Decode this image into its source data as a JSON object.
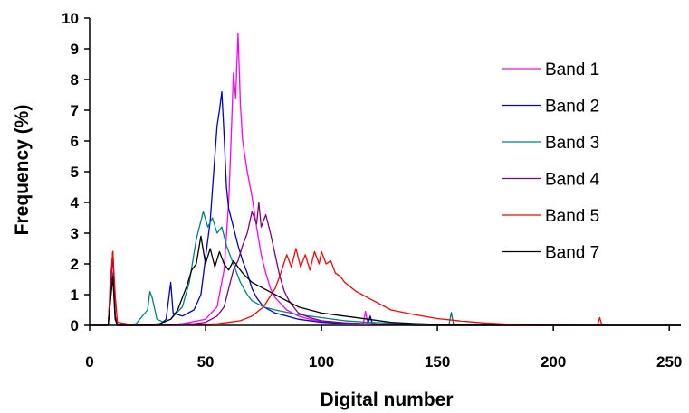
{
  "chart_data": {
    "type": "line",
    "xlabel": "Digital number",
    "ylabel": "Frequency (%)",
    "xlim": [
      0,
      255
    ],
    "ylim": [
      0,
      10
    ],
    "xticks": [
      "0",
      "50",
      "100",
      "150",
      "200",
      "250"
    ],
    "yticks": [
      "0",
      "1",
      "2",
      "3",
      "4",
      "5",
      "6",
      "7",
      "8",
      "9",
      "10"
    ],
    "grid": false,
    "legend": "right",
    "series": [
      {
        "name": "Band 1",
        "color": "#ff00ff",
        "points": [
          [
            0,
            0
          ],
          [
            8,
            0
          ],
          [
            9,
            1.2
          ],
          [
            10,
            2.4
          ],
          [
            11,
            0.3
          ],
          [
            12,
            0
          ],
          [
            30,
            0
          ],
          [
            40,
            0.05
          ],
          [
            50,
            0.2
          ],
          [
            55,
            0.6
          ],
          [
            58,
            1.8
          ],
          [
            60,
            4.0
          ],
          [
            61,
            6.0
          ],
          [
            62,
            8.2
          ],
          [
            63,
            7.4
          ],
          [
            64,
            9.5
          ],
          [
            65,
            7.2
          ],
          [
            66,
            6.0
          ],
          [
            68,
            5.0
          ],
          [
            70,
            4.2
          ],
          [
            72,
            3.2
          ],
          [
            74,
            2.3
          ],
          [
            76,
            1.7
          ],
          [
            78,
            1.2
          ],
          [
            80,
            0.9
          ],
          [
            85,
            0.5
          ],
          [
            90,
            0.3
          ],
          [
            95,
            0.2
          ],
          [
            100,
            0.12
          ],
          [
            110,
            0.08
          ],
          [
            118,
            0.05
          ],
          [
            119,
            0.45
          ],
          [
            120,
            0.05
          ],
          [
            125,
            0.03
          ],
          [
            140,
            0
          ],
          [
            255,
            0
          ]
        ]
      },
      {
        "name": "Band 2",
        "color": "#0000cc",
        "points": [
          [
            0,
            0
          ],
          [
            8,
            0
          ],
          [
            9,
            1.2
          ],
          [
            10,
            2.4
          ],
          [
            11,
            0.3
          ],
          [
            12,
            0
          ],
          [
            30,
            0
          ],
          [
            33,
            0.2
          ],
          [
            35,
            1.4
          ],
          [
            36,
            0.4
          ],
          [
            40,
            0.3
          ],
          [
            45,
            0.5
          ],
          [
            48,
            1.0
          ],
          [
            50,
            2.2
          ],
          [
            52,
            3.4
          ],
          [
            54,
            5.5
          ],
          [
            55,
            6.5
          ],
          [
            56,
            7.0
          ],
          [
            57,
            7.6
          ],
          [
            58,
            6.2
          ],
          [
            59,
            4.5
          ],
          [
            60,
            3.8
          ],
          [
            62,
            3.2
          ],
          [
            64,
            2.6
          ],
          [
            66,
            2.1
          ],
          [
            68,
            1.7
          ],
          [
            70,
            1.2
          ],
          [
            72,
            0.9
          ],
          [
            75,
            0.6
          ],
          [
            80,
            0.4
          ],
          [
            85,
            0.3
          ],
          [
            90,
            0.2
          ],
          [
            100,
            0.1
          ],
          [
            110,
            0.06
          ],
          [
            120,
            0.05
          ],
          [
            121,
            0.3
          ],
          [
            122,
            0.05
          ],
          [
            130,
            0.02
          ],
          [
            140,
            0
          ],
          [
            255,
            0
          ]
        ]
      },
      {
        "name": "Band 3",
        "color": "#008080",
        "points": [
          [
            0,
            0
          ],
          [
            8,
            0
          ],
          [
            9,
            0.8
          ],
          [
            10,
            1.7
          ],
          [
            11,
            0.2
          ],
          [
            12,
            0
          ],
          [
            20,
            0.05
          ],
          [
            25,
            0.5
          ],
          [
            26,
            1.1
          ],
          [
            27,
            0.9
          ],
          [
            29,
            0.2
          ],
          [
            32,
            0.1
          ],
          [
            35,
            0.2
          ],
          [
            40,
            0.6
          ],
          [
            43,
            1.4
          ],
          [
            46,
            2.8
          ],
          [
            49,
            3.7
          ],
          [
            51,
            3.2
          ],
          [
            53,
            3.5
          ],
          [
            55,
            3.0
          ],
          [
            57,
            3.2
          ],
          [
            59,
            2.6
          ],
          [
            61,
            2.2
          ],
          [
            63,
            1.8
          ],
          [
            65,
            1.4
          ],
          [
            68,
            1.0
          ],
          [
            70,
            0.8
          ],
          [
            75,
            0.6
          ],
          [
            80,
            0.5
          ],
          [
            90,
            0.35
          ],
          [
            100,
            0.25
          ],
          [
            110,
            0.15
          ],
          [
            120,
            0.1
          ],
          [
            140,
            0.05
          ],
          [
            155,
            0.03
          ],
          [
            156,
            0.42
          ],
          [
            157,
            0.02
          ],
          [
            160,
            0
          ],
          [
            255,
            0
          ]
        ]
      },
      {
        "name": "Band 4",
        "color": "#800080",
        "points": [
          [
            0,
            0
          ],
          [
            8,
            0
          ],
          [
            9,
            1.2
          ],
          [
            10,
            2.4
          ],
          [
            11,
            0.3
          ],
          [
            12,
            0
          ],
          [
            30,
            0
          ],
          [
            40,
            0.05
          ],
          [
            45,
            0.05
          ],
          [
            50,
            0.1
          ],
          [
            55,
            0.3
          ],
          [
            58,
            0.6
          ],
          [
            60,
            1.2
          ],
          [
            62,
            1.8
          ],
          [
            64,
            2.1
          ],
          [
            66,
            2.6
          ],
          [
            68,
            3.0
          ],
          [
            70,
            3.7
          ],
          [
            72,
            3.3
          ],
          [
            73,
            4.0
          ],
          [
            74,
            3.2
          ],
          [
            76,
            3.6
          ],
          [
            78,
            3.0
          ],
          [
            80,
            2.3
          ],
          [
            82,
            1.6
          ],
          [
            84,
            1.1
          ],
          [
            86,
            0.8
          ],
          [
            88,
            0.6
          ],
          [
            90,
            0.4
          ],
          [
            95,
            0.25
          ],
          [
            100,
            0.15
          ],
          [
            110,
            0.08
          ],
          [
            120,
            0.05
          ],
          [
            130,
            0.02
          ],
          [
            140,
            0
          ],
          [
            255,
            0
          ]
        ]
      },
      {
        "name": "Band 5",
        "color": "#ff0000",
        "points": [
          [
            0,
            0
          ],
          [
            8,
            0
          ],
          [
            9,
            1.5
          ],
          [
            10,
            2.4
          ],
          [
            11,
            1.0
          ],
          [
            12,
            0.1
          ],
          [
            20,
            0
          ],
          [
            40,
            0
          ],
          [
            55,
            0.05
          ],
          [
            65,
            0.15
          ],
          [
            70,
            0.3
          ],
          [
            75,
            0.6
          ],
          [
            80,
            1.2
          ],
          [
            82,
            1.6
          ],
          [
            85,
            2.3
          ],
          [
            87,
            1.9
          ],
          [
            89,
            2.5
          ],
          [
            91,
            1.9
          ],
          [
            93,
            2.3
          ],
          [
            95,
            1.8
          ],
          [
            97,
            2.4
          ],
          [
            99,
            2.0
          ],
          [
            100,
            2.4
          ],
          [
            102,
            2.0
          ],
          [
            104,
            2.1
          ],
          [
            106,
            1.7
          ],
          [
            108,
            1.6
          ],
          [
            110,
            1.4
          ],
          [
            115,
            1.1
          ],
          [
            120,
            0.9
          ],
          [
            125,
            0.7
          ],
          [
            130,
            0.5
          ],
          [
            140,
            0.35
          ],
          [
            150,
            0.22
          ],
          [
            160,
            0.14
          ],
          [
            170,
            0.08
          ],
          [
            180,
            0.04
          ],
          [
            190,
            0.02
          ],
          [
            200,
            0.01
          ],
          [
            219,
            0
          ],
          [
            220,
            0.25
          ],
          [
            221,
            0
          ],
          [
            255,
            0
          ]
        ]
      },
      {
        "name": "Band 7",
        "color": "#000000",
        "points": [
          [
            0,
            0
          ],
          [
            8,
            0
          ],
          [
            9,
            0.8
          ],
          [
            10,
            1.6
          ],
          [
            11,
            0.2
          ],
          [
            12,
            0
          ],
          [
            20,
            0
          ],
          [
            30,
            0.05
          ],
          [
            35,
            0.2
          ],
          [
            38,
            0.5
          ],
          [
            40,
            0.9
          ],
          [
            42,
            1.3
          ],
          [
            44,
            1.8
          ],
          [
            46,
            2.0
          ],
          [
            48,
            2.9
          ],
          [
            50,
            2.0
          ],
          [
            52,
            2.5
          ],
          [
            54,
            1.9
          ],
          [
            56,
            2.4
          ],
          [
            58,
            2.0
          ],
          [
            60,
            1.8
          ],
          [
            62,
            2.1
          ],
          [
            64,
            1.9
          ],
          [
            66,
            1.7
          ],
          [
            70,
            1.4
          ],
          [
            75,
            1.2
          ],
          [
            80,
            1.0
          ],
          [
            85,
            0.8
          ],
          [
            90,
            0.6
          ],
          [
            100,
            0.4
          ],
          [
            110,
            0.3
          ],
          [
            120,
            0.2
          ],
          [
            130,
            0.1
          ],
          [
            140,
            0.06
          ],
          [
            150,
            0.03
          ],
          [
            170,
            0.01
          ],
          [
            200,
            0
          ],
          [
            255,
            0
          ]
        ]
      }
    ]
  }
}
